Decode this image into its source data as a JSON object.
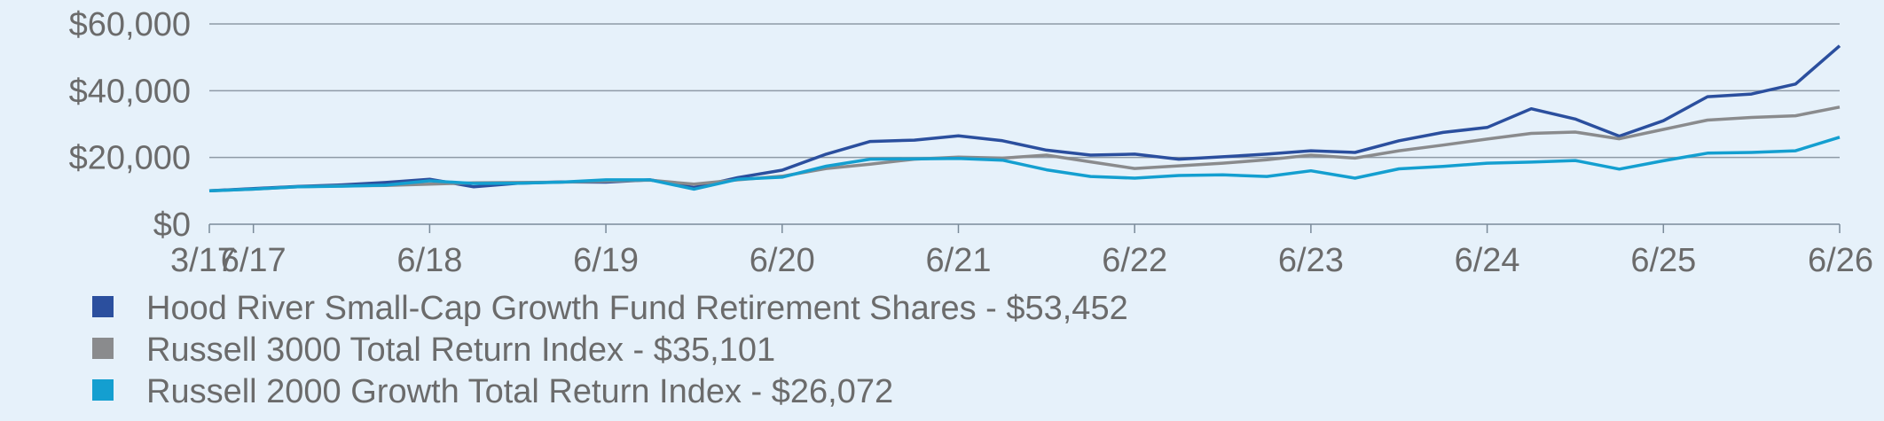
{
  "chart_data": {
    "type": "line",
    "x_ticks": [
      "3/17",
      "6/17",
      "6/18",
      "6/19",
      "6/20",
      "6/21",
      "6/22",
      "6/23",
      "6/24",
      "6/25",
      "6/26"
    ],
    "y_ticks": [
      "$0",
      "$20,000",
      "$40,000",
      "$60,000"
    ],
    "ylim": [
      0,
      60000
    ],
    "grid": "horizontal",
    "legend_position": "bottom",
    "colors": {
      "hood_river": "#2b4f9e",
      "russell_3000": "#8a8b8d",
      "russell_2000": "#149fd0"
    },
    "series": [
      {
        "name": "Hood River Small-Cap Growth Fund Retirement Shares - $53,452",
        "key": "hood_river",
        "x": [
          "3/17",
          "6/17",
          "9/17",
          "12/17",
          "3/18",
          "6/18",
          "9/18",
          "12/18",
          "3/19",
          "6/19",
          "9/19",
          "12/19",
          "3/20",
          "6/20",
          "9/20",
          "12/20",
          "3/21",
          "6/21",
          "9/21",
          "12/21",
          "3/22",
          "6/22",
          "9/22",
          "12/22",
          "3/23",
          "6/23",
          "9/23",
          "12/23",
          "3/24",
          "6/24",
          "9/24",
          "12/24",
          "3/25",
          "6/25",
          "9/25",
          "12/25",
          "3/26",
          "6/26"
        ],
        "values": [
          10000,
          10700,
          11300,
          11800,
          12500,
          13500,
          11200,
          12300,
          12700,
          12600,
          13300,
          11000,
          14000,
          16200,
          21000,
          24800,
          25200,
          26500,
          25000,
          22200,
          20700,
          21000,
          19500,
          20200,
          21000,
          22000,
          21500,
          25000,
          27500,
          29000,
          34600,
          31500,
          26400,
          31000,
          38200,
          39000,
          42000,
          53452
        ]
      },
      {
        "name": "Russell 3000 Total Return Index - $35,101",
        "key": "russell_3000",
        "x": [
          "3/17",
          "6/17",
          "9/17",
          "12/17",
          "3/18",
          "6/18",
          "9/18",
          "12/18",
          "3/19",
          "6/19",
          "9/19",
          "12/19",
          "3/20",
          "6/20",
          "9/20",
          "12/20",
          "3/21",
          "6/21",
          "9/21",
          "12/21",
          "3/22",
          "6/22",
          "9/22",
          "12/22",
          "3/23",
          "6/23",
          "9/23",
          "12/23",
          "3/24",
          "6/24",
          "9/24",
          "12/24",
          "3/25",
          "6/25",
          "9/25",
          "12/25",
          "3/26",
          "6/26"
        ],
        "values": [
          10000,
          10500,
          11200,
          11500,
          11600,
          12000,
          12400,
          12500,
          12600,
          12900,
          13200,
          12000,
          13300,
          14400,
          16700,
          18000,
          19500,
          20100,
          19800,
          20700,
          18700,
          16700,
          17500,
          18300,
          19300,
          20700,
          19800,
          22000,
          23700,
          25500,
          27200,
          27600,
          25600,
          28400,
          31200,
          32000,
          32500,
          35101
        ]
      },
      {
        "name": "Russell 2000 Growth Total Return Index - $26,072",
        "key": "russell_2000",
        "x": [
          "3/17",
          "6/17",
          "9/17",
          "12/17",
          "3/18",
          "6/18",
          "9/18",
          "12/18",
          "3/19",
          "6/19",
          "9/19",
          "12/19",
          "3/20",
          "6/20",
          "9/20",
          "12/20",
          "3/21",
          "6/21",
          "9/21",
          "12/21",
          "3/22",
          "6/22",
          "9/22",
          "12/22",
          "3/23",
          "6/23",
          "9/23",
          "12/23",
          "3/24",
          "6/24",
          "9/24",
          "12/24",
          "3/25",
          "6/25",
          "9/25",
          "12/25",
          "3/26",
          "6/26"
        ],
        "values": [
          10000,
          10500,
          11200,
          11400,
          11700,
          13000,
          12200,
          12300,
          12600,
          13300,
          13300,
          10500,
          13500,
          14100,
          17400,
          19500,
          19600,
          19700,
          19200,
          16300,
          14300,
          13800,
          14600,
          14800,
          14300,
          16000,
          13800,
          16600,
          17300,
          18300,
          18600,
          19100,
          16500,
          19000,
          21300,
          21500,
          22000,
          26072
        ]
      }
    ]
  }
}
